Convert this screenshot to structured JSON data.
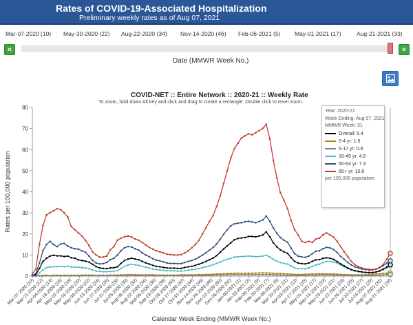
{
  "header": {
    "title": "Rates of COVID-19-Associated Hospitalization",
    "subtitle": "Preliminary weekly rates as of Aug 07, 2021"
  },
  "slider": {
    "week_labels": [
      "Mar-07-2020 (10)",
      "May-30-2020 (22)",
      "Aug-22-2020 (34)",
      "Nov-14-2020 (46)",
      "Feb-06-2021 (5)",
      "May-01-2021 (17)",
      "Aug-21-2021 (33)"
    ],
    "prev_label": "«",
    "next_label": "»",
    "axis_title": "Date (MMWR Week No.)",
    "position": 1.0
  },
  "image_button": {
    "icon": "image-icon"
  },
  "tooltip": {
    "year": "Year: 2020-21",
    "week_ending": "Week Ending: Aug 07, 2021",
    "mmwr_week": "MMWR Week: 31",
    "rows": [
      {
        "label": "Overall: ",
        "value": "5.4"
      },
      {
        "label": "0-4 yr: ",
        "value": "1.6"
      },
      {
        "label": "5-17 yr: ",
        "value": "0.8"
      },
      {
        "label": "18-49 yr: ",
        "value": "4.9"
      },
      {
        "label": "50-64 yr: ",
        "value": "7.3"
      },
      {
        "label": "65+ yr: ",
        "value": "10.8"
      }
    ],
    "footer": "per 100,000 population"
  },
  "chart_data": {
    "type": "line",
    "title": "COVID-NET :: Entire Network :: 2020-21 :: Weekly Rate",
    "subtitle": "To zoom, hold down Alt key and click and drag to create a rectangle. Double click to reset zoom.",
    "xlabel": "Calendar Week Ending (MMWR Week No.)",
    "ylabel": "Rates per 100,000 population",
    "ylim": [
      0,
      80
    ],
    "yticks": [
      0,
      10,
      20,
      30,
      40,
      50,
      60,
      70,
      80
    ],
    "grid": false,
    "x_tick_labels": [
      "Mar-07-2020 (10)",
      "Mar-21-2020 (12)",
      "Apr-04-2020 (14)",
      "Apr-18-2020 (16)",
      "May-02-2020 (18)",
      "May-16-2020 (20)",
      "May-30-2020 (22)",
      "Jun-13-2020 (24)",
      "Jun-27-2020 (26)",
      "Jul-11-2020 (28)",
      "Jul-25-2020 (30)",
      "Aug-08-2020 (32)",
      "Aug-22-2020 (34)",
      "Sep-05-2020 (36)",
      "Sep-19-2020 (38)",
      "Oct-03-2020 (40)",
      "Oct-17-2020 (42)",
      "Oct-31-2020 (44)",
      "Nov-14-2020 (46)",
      "Nov-28-2020 (48)",
      "Dec-12-2020 (50)",
      "Dec-26-2020 (52)",
      "Jan-09-2021 (1)",
      "Jan-23-2021 (3)",
      "Feb-06-2021 (5)",
      "Feb-20-2021 (7)",
      "Mar-06-2021 (9)",
      "Mar-20-2021 (11)",
      "Apr-03-2021 (13)",
      "Apr-17-2021 (15)",
      "May-01-2021 (17)",
      "May-15-2021 (19)",
      "May-29-2021 (21)",
      "Jun-12-2021 (23)",
      "Jun-26-2021 (25)",
      "Jul-10-2021 (27)",
      "Jul-24-2021 (29)",
      "Aug-07-2021 (31)",
      "Aug-21-2021 (33)"
    ],
    "series": [
      {
        "name": "Overall",
        "color": "#000000",
        "values": [
          0.2,
          0.7,
          3.6,
          7.0,
          8.5,
          9.5,
          9.9,
          9.6,
          9.6,
          9.3,
          9.5,
          8.7,
          8.5,
          7.7,
          7.4,
          7.1,
          6.6,
          5.6,
          4.5,
          3.9,
          3.7,
          3.6,
          3.9,
          4.0,
          4.4,
          6.0,
          7.4,
          8.1,
          8.5,
          8.1,
          7.8,
          7.0,
          6.3,
          5.7,
          5.1,
          4.6,
          4.4,
          4.1,
          3.9,
          3.8,
          3.8,
          3.7,
          3.7,
          4.1,
          4.4,
          4.6,
          5.1,
          5.6,
          6.3,
          7.0,
          7.8,
          8.6,
          9.7,
          11.3,
          12.9,
          14.4,
          15.8,
          17.2,
          17.9,
          18.1,
          18.3,
          18.8,
          18.8,
          18.6,
          19.0,
          19.5,
          21.0,
          18.6,
          15.8,
          13.9,
          12.4,
          11.5,
          10.8,
          8.8,
          7.0,
          6.2,
          5.9,
          5.8,
          6.2,
          7.0,
          7.7,
          7.8,
          8.4,
          8.7,
          8.5,
          7.9,
          6.9,
          5.8,
          4.8,
          3.9,
          3.1,
          2.6,
          2.3,
          2.0,
          1.8,
          1.7,
          1.7,
          2.0,
          2.5,
          3.3,
          4.3,
          5.4
        ]
      },
      {
        "name": "0-4 yr",
        "color": "#b8860b",
        "values": [
          0.0,
          0.1,
          0.3,
          0.4,
          0.4,
          0.3,
          0.4,
          0.4,
          0.4,
          0.4,
          0.4,
          0.4,
          0.4,
          0.4,
          0.5,
          0.5,
          0.5,
          0.5,
          0.4,
          0.4,
          0.4,
          0.4,
          0.5,
          0.5,
          0.5,
          0.6,
          0.6,
          0.7,
          0.7,
          0.7,
          0.6,
          0.6,
          0.6,
          0.6,
          0.6,
          0.5,
          0.5,
          0.5,
          0.5,
          0.5,
          0.5,
          0.5,
          0.6,
          0.6,
          0.6,
          0.6,
          0.6,
          0.7,
          0.7,
          0.8,
          0.8,
          0.9,
          1.0,
          1.0,
          1.1,
          1.2,
          1.3,
          1.3,
          1.4,
          1.3,
          1.3,
          1.4,
          1.4,
          1.4,
          1.5,
          1.5,
          1.5,
          1.4,
          1.3,
          1.2,
          1.2,
          1.1,
          1.0,
          0.9,
          0.8,
          0.8,
          0.8,
          0.9,
          0.9,
          1.0,
          1.0,
          1.1,
          1.1,
          1.1,
          1.0,
          1.0,
          0.9,
          0.8,
          0.7,
          0.7,
          0.6,
          0.6,
          0.6,
          0.6,
          0.7,
          0.8,
          0.9,
          1.0,
          1.1,
          1.3,
          1.4,
          1.6
        ]
      },
      {
        "name": "5-17 yr",
        "color": "#7f7f7f",
        "values": [
          0.0,
          0.0,
          0.1,
          0.1,
          0.2,
          0.2,
          0.2,
          0.2,
          0.2,
          0.2,
          0.2,
          0.2,
          0.2,
          0.2,
          0.2,
          0.3,
          0.3,
          0.3,
          0.3,
          0.3,
          0.3,
          0.3,
          0.3,
          0.3,
          0.3,
          0.3,
          0.3,
          0.4,
          0.4,
          0.4,
          0.4,
          0.3,
          0.3,
          0.3,
          0.3,
          0.3,
          0.3,
          0.3,
          0.3,
          0.3,
          0.3,
          0.3,
          0.3,
          0.3,
          0.3,
          0.3,
          0.3,
          0.4,
          0.4,
          0.4,
          0.4,
          0.5,
          0.5,
          0.6,
          0.6,
          0.6,
          0.7,
          0.7,
          0.7,
          0.7,
          0.7,
          0.7,
          0.7,
          0.7,
          0.7,
          0.7,
          0.7,
          0.7,
          0.6,
          0.6,
          0.5,
          0.5,
          0.5,
          0.4,
          0.4,
          0.4,
          0.4,
          0.4,
          0.5,
          0.5,
          0.5,
          0.6,
          0.6,
          0.6,
          0.6,
          0.5,
          0.5,
          0.5,
          0.4,
          0.4,
          0.3,
          0.3,
          0.3,
          0.3,
          0.3,
          0.3,
          0.4,
          0.4,
          0.5,
          0.6,
          0.7,
          0.8
        ]
      },
      {
        "name": "18-49 yr",
        "color": "#4fb8c2",
        "values": [
          0.1,
          0.3,
          1.5,
          2.9,
          4.0,
          4.3,
          4.4,
          4.5,
          4.6,
          4.5,
          4.7,
          4.3,
          4.3,
          4.2,
          4.0,
          3.9,
          3.5,
          2.9,
          2.4,
          2.2,
          2.1,
          2.1,
          2.2,
          2.3,
          2.6,
          3.6,
          4.6,
          5.3,
          5.6,
          5.4,
          5.1,
          4.6,
          4.2,
          3.8,
          3.4,
          3.1,
          2.9,
          2.7,
          2.5,
          2.5,
          2.5,
          2.4,
          2.4,
          2.6,
          2.8,
          3.0,
          3.3,
          3.6,
          4.0,
          4.4,
          4.9,
          5.4,
          6.0,
          6.7,
          7.4,
          8.0,
          8.5,
          9.0,
          9.2,
          9.3,
          9.4,
          9.5,
          9.4,
          9.2,
          9.3,
          9.5,
          9.9,
          9.1,
          7.9,
          7.1,
          6.4,
          6.0,
          5.7,
          4.8,
          3.9,
          3.6,
          3.5,
          3.5,
          3.9,
          4.6,
          5.3,
          5.6,
          6.4,
          6.9,
          7.0,
          6.7,
          6.1,
          5.3,
          4.4,
          3.6,
          2.9,
          2.4,
          2.1,
          1.8,
          1.7,
          1.6,
          1.6,
          1.9,
          2.4,
          3.1,
          4.0,
          4.9
        ]
      },
      {
        "name": "50-64 yr",
        "color": "#2f4b7c",
        "values": [
          0.3,
          1.2,
          6.2,
          12.0,
          15.0,
          16.5,
          15.0,
          14.0,
          15.2,
          15.5,
          14.2,
          13.5,
          13.0,
          12.8,
          12.0,
          11.3,
          9.5,
          7.5,
          6.2,
          5.8,
          5.9,
          6.5,
          7.8,
          8.5,
          10.0,
          12.0,
          13.5,
          14.0,
          13.8,
          13.0,
          12.3,
          11.0,
          10.0,
          9.2,
          8.3,
          7.6,
          7.2,
          6.8,
          6.2,
          6.0,
          6.0,
          5.9,
          5.9,
          6.5,
          7.0,
          7.4,
          8.0,
          8.9,
          10.0,
          11.1,
          12.3,
          13.6,
          15.2,
          17.5,
          19.9,
          22.0,
          23.8,
          24.8,
          25.1,
          25.3,
          25.8,
          26.0,
          25.7,
          25.3,
          25.9,
          26.6,
          28.5,
          26.0,
          22.8,
          20.3,
          18.3,
          17.0,
          16.1,
          13.3,
          10.7,
          9.5,
          9.1,
          8.9,
          9.5,
          10.6,
          11.8,
          12.0,
          13.0,
          13.6,
          13.4,
          12.6,
          11.2,
          9.4,
          7.9,
          6.5,
          5.3,
          4.4,
          3.9,
          3.4,
          3.1,
          2.9,
          2.9,
          3.3,
          4.0,
          5.0,
          6.1,
          7.3
        ]
      },
      {
        "name": "65+ yr",
        "color": "#c0392b",
        "values": [
          1.0,
          3.4,
          15.0,
          24.0,
          29.0,
          30.0,
          31.0,
          32.0,
          31.5,
          30.0,
          28.0,
          23.5,
          22.0,
          20.5,
          19.0,
          17.0,
          14.5,
          11.5,
          10.0,
          9.0,
          9.0,
          9.5,
          12.5,
          14.0,
          17.0,
          18.0,
          18.7,
          19.0,
          18.5,
          17.6,
          17.0,
          16.0,
          14.8,
          13.6,
          12.8,
          12.0,
          11.5,
          11.0,
          10.4,
          10.2,
          10.0,
          10.0,
          10.2,
          11.0,
          12.0,
          13.5,
          15.0,
          17.0,
          20.0,
          23.0,
          26.0,
          28.7,
          33.0,
          38.0,
          44.0,
          50.0,
          56.0,
          60.5,
          63.0,
          65.5,
          66.5,
          67.5,
          67.0,
          68.0,
          69.0,
          70.0,
          72.0,
          65.0,
          55.0,
          46.5,
          39.5,
          36.0,
          32.0,
          26.5,
          22.0,
          19.5,
          16.5,
          16.0,
          16.5,
          16.0,
          17.5,
          18.0,
          19.5,
          20.5,
          19.5,
          18.5,
          16.5,
          14.0,
          11.5,
          9.2,
          7.0,
          5.5,
          4.5,
          3.8,
          3.4,
          3.2,
          3.1,
          3.4,
          4.2,
          5.5,
          8.0,
          10.8
        ]
      }
    ]
  }
}
